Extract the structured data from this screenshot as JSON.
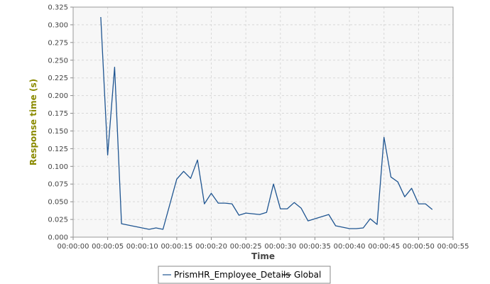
{
  "chart_data": {
    "type": "line",
    "title": "",
    "xlabel": "Time",
    "ylabel": "Response time (s)",
    "x_tick_labels": [
      "00:00:00",
      "00:00:05",
      "00:00:10",
      "00:00:15",
      "00:00:20",
      "00:00:25",
      "00:00:30",
      "00:00:35",
      "00:00:40",
      "00:00:45",
      "00:00:50",
      "00:00:55"
    ],
    "x_ticks_seconds": [
      0,
      5,
      10,
      15,
      20,
      25,
      30,
      35,
      40,
      45,
      50,
      55
    ],
    "xlim_seconds": [
      0,
      55
    ],
    "y_tick_labels": [
      "0.000",
      "0.025",
      "0.050",
      "0.075",
      "0.100",
      "0.125",
      "0.150",
      "0.175",
      "0.200",
      "0.225",
      "0.250",
      "0.275",
      "0.300",
      "0.325"
    ],
    "y_ticks": [
      0,
      0.025,
      0.05,
      0.075,
      0.1,
      0.125,
      0.15,
      0.175,
      0.2,
      0.225,
      0.25,
      0.275,
      0.3,
      0.325
    ],
    "ylim": [
      0,
      0.325
    ],
    "grid": true,
    "legend_position": "bottom-center",
    "series": [
      {
        "name": "PrismHR_Employee_Details",
        "color": "#1f5591",
        "x_seconds": [
          4,
          5,
          6,
          7,
          11,
          12,
          13,
          15,
          16,
          17,
          18,
          19,
          20,
          21,
          22,
          23,
          24,
          25,
          26,
          27,
          28,
          29,
          30,
          31,
          32,
          33,
          34,
          37,
          38,
          40,
          41,
          42,
          43,
          44,
          45,
          46,
          47,
          48,
          49,
          50,
          51,
          52
        ],
        "values": [
          0.311,
          0.116,
          0.24,
          0.019,
          0.011,
          0.013,
          0.011,
          0.082,
          0.093,
          0.083,
          0.109,
          0.047,
          0.062,
          0.048,
          0.048,
          0.047,
          0.031,
          0.034,
          0.033,
          0.032,
          0.035,
          0.075,
          0.04,
          0.04,
          0.049,
          0.041,
          0.023,
          0.032,
          0.016,
          0.012,
          0.012,
          0.013,
          0.026,
          0.018,
          0.141,
          0.085,
          0.078,
          0.057,
          0.069,
          0.047,
          0.047,
          0.039
        ]
      },
      {
        "name": "Global",
        "color": "#000000",
        "x_seconds": [],
        "values": []
      }
    ]
  }
}
